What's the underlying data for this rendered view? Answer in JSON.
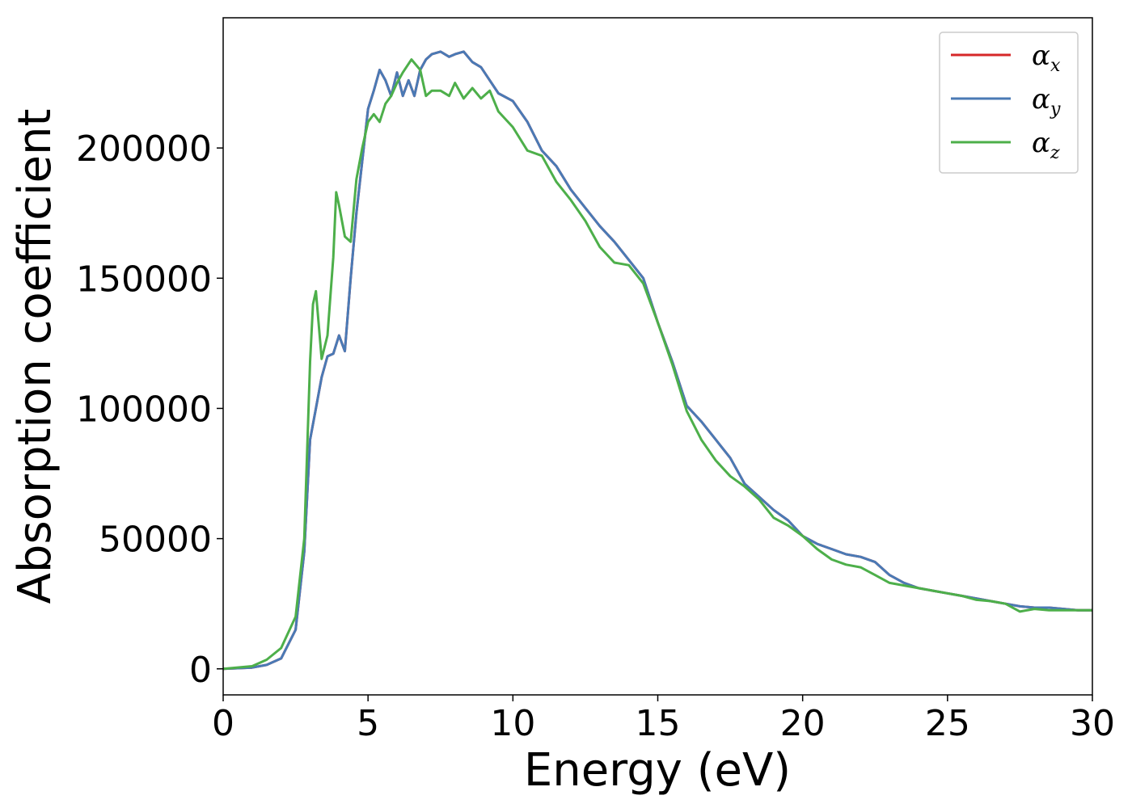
{
  "chart_data": {
    "type": "line",
    "xlabel": "Energy (eV)",
    "ylabel": "Absorption coefficient",
    "xlim": [
      0,
      30
    ],
    "ylim": [
      -10000,
      250000
    ],
    "xticks": [
      0,
      5,
      10,
      15,
      20,
      25,
      30
    ],
    "xtick_labels": [
      "0",
      "5",
      "10",
      "15",
      "20",
      "25",
      "30"
    ],
    "yticks": [
      0,
      50000,
      100000,
      150000,
      200000
    ],
    "ytick_labels": [
      "0",
      "50000",
      "100000",
      "150000",
      "200000"
    ],
    "grid": false,
    "legend_position": "top-right",
    "series": [
      {
        "name": "αx",
        "symbol": "α",
        "subscript": "x",
        "color": "#d62728",
        "x": [
          0,
          1,
          1.5,
          2,
          2.5,
          2.8,
          3.0,
          3.2,
          3.4,
          3.6,
          3.8,
          4.0,
          4.2,
          4.4,
          4.6,
          4.8,
          5.0,
          5.2,
          5.4,
          5.6,
          5.8,
          6.0,
          6.2,
          6.4,
          6.6,
          6.8,
          7.0,
          7.2,
          7.5,
          7.8,
          8.0,
          8.3,
          8.6,
          8.9,
          9.2,
          9.5,
          10.0,
          10.5,
          11.0,
          11.5,
          12.0,
          12.5,
          13.0,
          13.5,
          14.0,
          14.5,
          15.0,
          15.5,
          16.0,
          16.5,
          17.0,
          17.5,
          18.0,
          18.5,
          19.0,
          19.5,
          20.0,
          20.5,
          21.0,
          21.5,
          22.0,
          22.5,
          23.0,
          23.5,
          24.0,
          24.5,
          25.0,
          25.5,
          26.0,
          26.5,
          27.0,
          27.5,
          28.0,
          28.5,
          29.0,
          29.5,
          30.0
        ],
        "values": [
          0,
          500,
          1500,
          4000,
          15000,
          45000,
          88000,
          100000,
          112000,
          120000,
          121000,
          128000,
          122000,
          150000,
          175000,
          195000,
          215000,
          222000,
          230000,
          226000,
          220000,
          229000,
          220000,
          226000,
          220000,
          230000,
          234000,
          236000,
          237000,
          235000,
          236000,
          237000,
          233000,
          231000,
          226000,
          221000,
          218000,
          210000,
          199000,
          193000,
          184000,
          177000,
          170000,
          164000,
          157000,
          150000,
          133000,
          118000,
          101000,
          95000,
          88000,
          81000,
          71000,
          66000,
          61000,
          57000,
          51000,
          48000,
          46000,
          44000,
          43000,
          41000,
          36000,
          33000,
          31000,
          30000,
          29000,
          28000,
          27000,
          26000,
          25000,
          24000,
          23500,
          23500,
          23000,
          22500,
          22500
        ]
      },
      {
        "name": "αy",
        "symbol": "α",
        "subscript": "y",
        "color": "#4a7ab5",
        "x": [
          0,
          1,
          1.5,
          2,
          2.5,
          2.8,
          3.0,
          3.2,
          3.4,
          3.6,
          3.8,
          4.0,
          4.2,
          4.4,
          4.6,
          4.8,
          5.0,
          5.2,
          5.4,
          5.6,
          5.8,
          6.0,
          6.2,
          6.4,
          6.6,
          6.8,
          7.0,
          7.2,
          7.5,
          7.8,
          8.0,
          8.3,
          8.6,
          8.9,
          9.2,
          9.5,
          10.0,
          10.5,
          11.0,
          11.5,
          12.0,
          12.5,
          13.0,
          13.5,
          14.0,
          14.5,
          15.0,
          15.5,
          16.0,
          16.5,
          17.0,
          17.5,
          18.0,
          18.5,
          19.0,
          19.5,
          20.0,
          20.5,
          21.0,
          21.5,
          22.0,
          22.5,
          23.0,
          23.5,
          24.0,
          24.5,
          25.0,
          25.5,
          26.0,
          26.5,
          27.0,
          27.5,
          28.0,
          28.5,
          29.0,
          29.5,
          30.0
        ],
        "values": [
          0,
          500,
          1500,
          4000,
          15000,
          45000,
          88000,
          100000,
          112000,
          120000,
          121000,
          128000,
          122000,
          150000,
          175000,
          195000,
          215000,
          222000,
          230000,
          226000,
          220000,
          229000,
          220000,
          226000,
          220000,
          230000,
          234000,
          236000,
          237000,
          235000,
          236000,
          237000,
          233000,
          231000,
          226000,
          221000,
          218000,
          210000,
          199000,
          193000,
          184000,
          177000,
          170000,
          164000,
          157000,
          150000,
          133000,
          118000,
          101000,
          95000,
          88000,
          81000,
          71000,
          66000,
          61000,
          57000,
          51000,
          48000,
          46000,
          44000,
          43000,
          41000,
          36000,
          33000,
          31000,
          30000,
          29000,
          28000,
          27000,
          26000,
          25000,
          24000,
          23500,
          23500,
          23000,
          22500,
          22500
        ]
      },
      {
        "name": "αz",
        "symbol": "α",
        "subscript": "z",
        "color": "#4daf4a",
        "x": [
          0,
          1,
          1.5,
          2,
          2.5,
          2.8,
          3.0,
          3.1,
          3.2,
          3.4,
          3.6,
          3.8,
          3.9,
          4.0,
          4.2,
          4.4,
          4.6,
          4.8,
          5.0,
          5.2,
          5.4,
          5.6,
          5.8,
          6.0,
          6.2,
          6.5,
          6.8,
          7.0,
          7.2,
          7.5,
          7.8,
          8.0,
          8.3,
          8.6,
          8.9,
          9.2,
          9.5,
          10.0,
          10.5,
          11.0,
          11.5,
          12.0,
          12.5,
          13.0,
          13.5,
          14.0,
          14.5,
          15.0,
          15.5,
          16.0,
          16.5,
          17.0,
          17.5,
          18.0,
          18.5,
          19.0,
          19.5,
          20.0,
          20.5,
          21.0,
          21.5,
          22.0,
          22.5,
          23.0,
          23.5,
          24.0,
          24.5,
          25.0,
          25.5,
          26.0,
          26.5,
          27.0,
          27.5,
          28.0,
          28.5,
          29.0,
          29.5,
          30.0
        ],
        "values": [
          0,
          1000,
          3500,
          8000,
          20000,
          50000,
          118000,
          140000,
          145000,
          119000,
          128000,
          158000,
          183000,
          178000,
          166000,
          164000,
          188000,
          200000,
          210000,
          213000,
          210000,
          217000,
          220000,
          225000,
          229000,
          234000,
          230000,
          220000,
          222000,
          222000,
          220000,
          225000,
          219000,
          223000,
          219000,
          222000,
          214000,
          208000,
          199000,
          197000,
          187000,
          180000,
          172000,
          162000,
          156000,
          155000,
          148000,
          133000,
          117000,
          99000,
          88000,
          80000,
          74000,
          70000,
          65000,
          58000,
          55000,
          51000,
          46000,
          42000,
          40000,
          39000,
          36000,
          33000,
          32000,
          31000,
          30000,
          29000,
          28000,
          26500,
          26000,
          25000,
          22000,
          23000,
          22500,
          22500,
          22500,
          22500
        ]
      }
    ]
  }
}
